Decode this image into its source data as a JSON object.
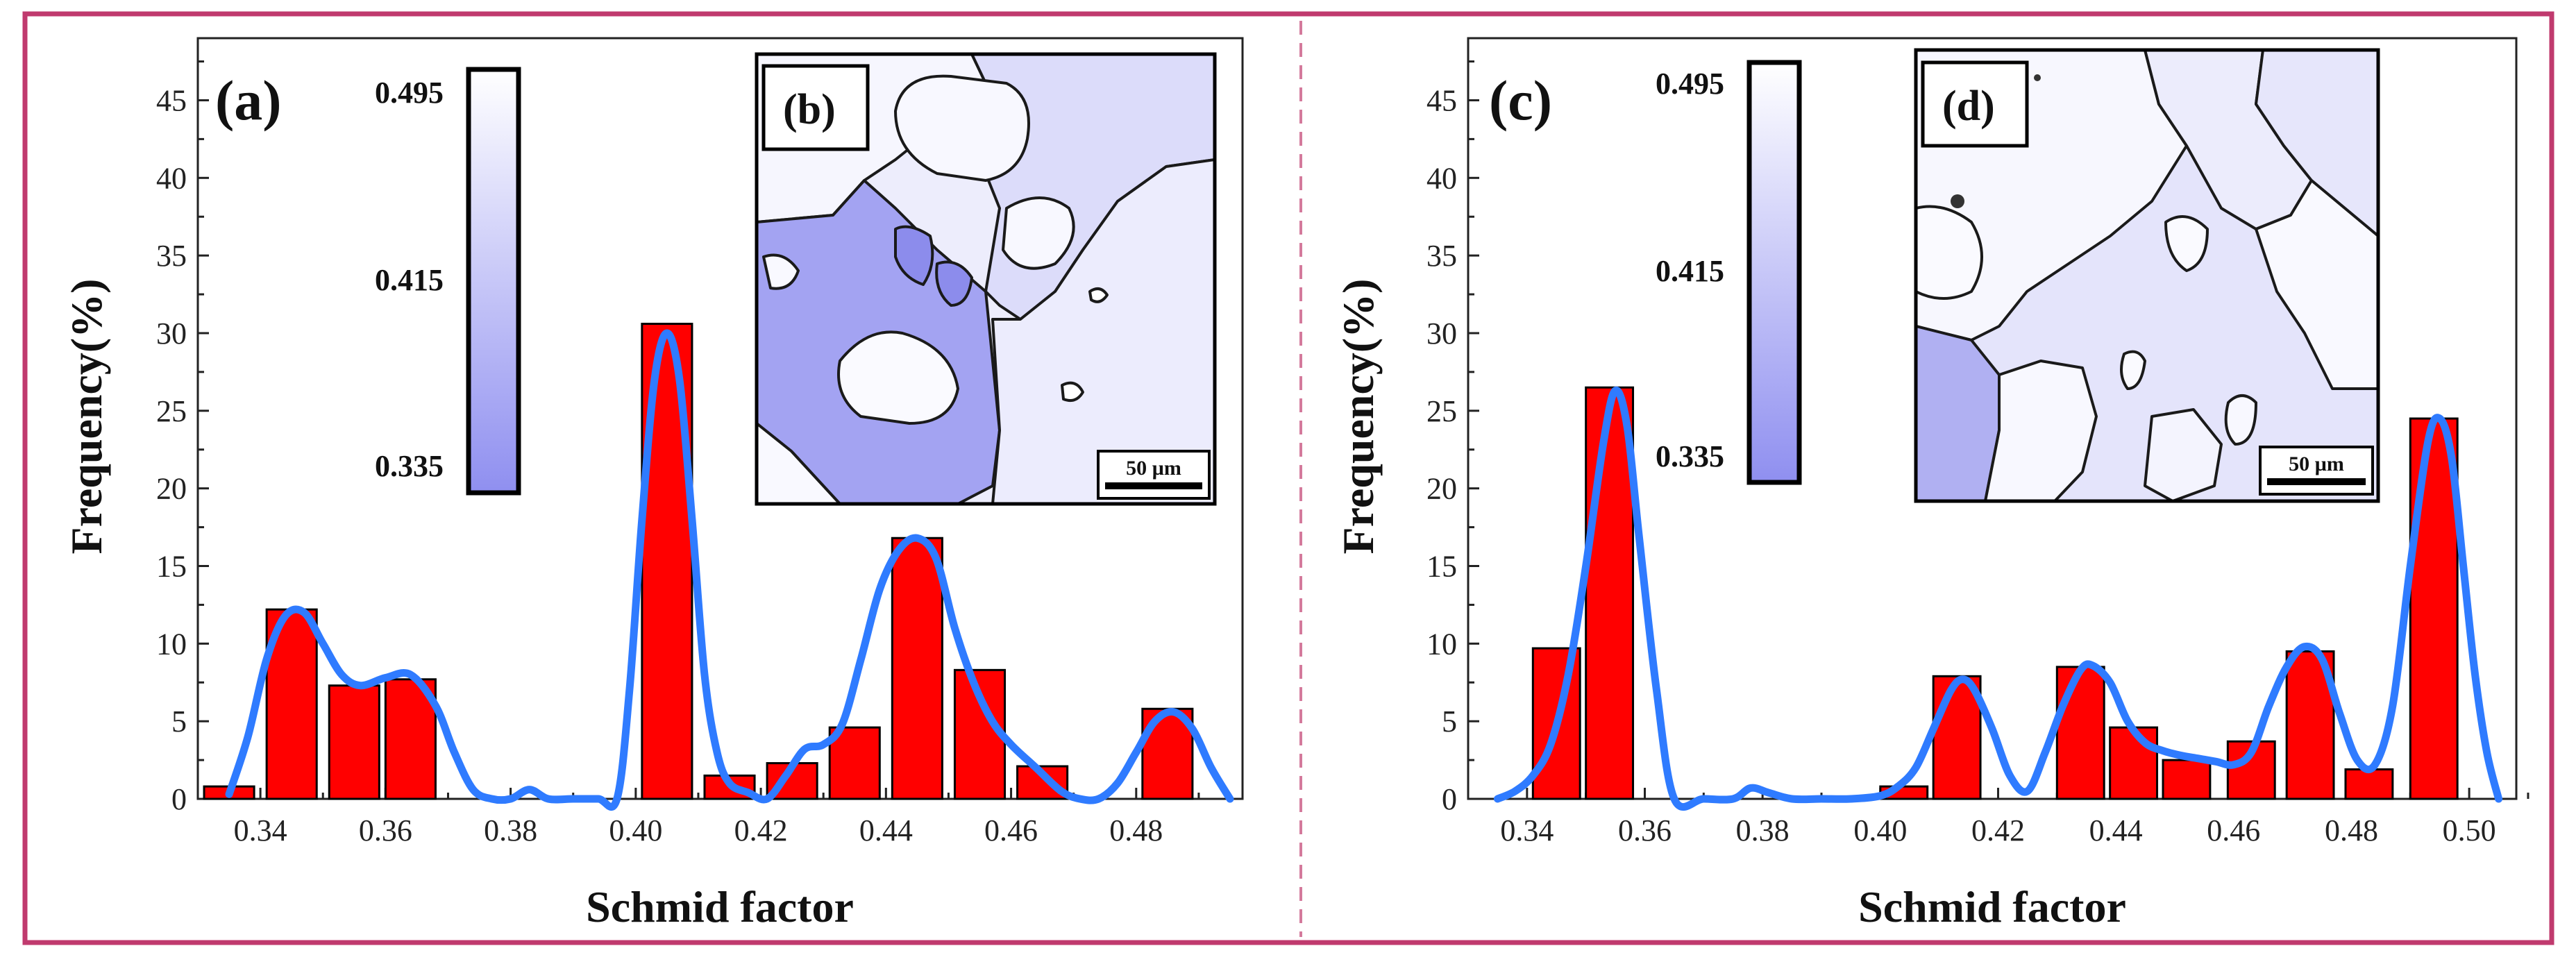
{
  "colors": {
    "frame": "#c03a6e",
    "divider": "#d47a9c",
    "bar_fill": "#ff0000",
    "bar_stroke": "#000000",
    "curve": "#2f7bff",
    "map_high": "#ffffff",
    "map_low": "#8f8ff0"
  },
  "chart_data": [
    {
      "panel": "a",
      "type": "bar",
      "xlabel": "Schmid factor",
      "ylabel": "Frequency(%)",
      "xlim": [
        0.33,
        0.497
      ],
      "ylim": [
        0,
        49
      ],
      "xticks": [
        "0.34",
        "0.36",
        "0.38",
        "0.40",
        "0.42",
        "0.44",
        "0.46",
        "0.48"
      ],
      "yticks": [
        "0",
        "5",
        "10",
        "15",
        "20",
        "25",
        "30",
        "35",
        "40",
        "45"
      ],
      "bin_width": 0.008,
      "x": [
        0.335,
        0.345,
        0.355,
        0.364,
        0.405,
        0.415,
        0.425,
        0.435,
        0.445,
        0.455,
        0.465,
        0.485
      ],
      "values": [
        0.8,
        12.2,
        7.3,
        7.7,
        30.6,
        1.5,
        2.3,
        4.6,
        16.8,
        8.3,
        2.1,
        5.8
      ],
      "curve": {
        "x": [
          0.335,
          0.338,
          0.341,
          0.344,
          0.347,
          0.35,
          0.353,
          0.356,
          0.36,
          0.364,
          0.368,
          0.371,
          0.374,
          0.377,
          0.38,
          0.383,
          0.386,
          0.39,
          0.394,
          0.397,
          0.399,
          0.401,
          0.403,
          0.405,
          0.407,
          0.409,
          0.411,
          0.413,
          0.415,
          0.418,
          0.421,
          0.424,
          0.427,
          0.43,
          0.433,
          0.436,
          0.439,
          0.442,
          0.445,
          0.448,
          0.451,
          0.454,
          0.457,
          0.46,
          0.464,
          0.468,
          0.471,
          0.474,
          0.477,
          0.48,
          0.483,
          0.486,
          0.489,
          0.492,
          0.495
        ],
        "y": [
          0.3,
          4,
          9,
          11.8,
          12,
          10,
          8,
          7.3,
          7.8,
          8,
          6,
          3,
          0.6,
          0,
          0,
          0.6,
          0,
          0,
          0,
          0,
          7,
          18,
          27,
          30,
          27,
          18,
          8,
          3,
          1,
          0.4,
          0,
          1.5,
          3.2,
          3.5,
          4.8,
          9,
          13.5,
          16,
          16.8,
          15.5,
          11,
          7.5,
          5,
          3.5,
          2,
          0.5,
          0,
          0,
          1,
          3,
          5,
          5.6,
          4.5,
          2,
          0
        ]
      },
      "inset_label": "(b)",
      "colorbar": {
        "max": "0.495",
        "mid": "0.415",
        "min": "0.335"
      },
      "scale_bar": "50 µm"
    },
    {
      "panel": "c",
      "type": "bar",
      "xlabel": "Schmid factor",
      "ylabel": "Frequency(%)",
      "xlim": [
        0.33,
        0.508
      ],
      "ylim": [
        0,
        49
      ],
      "xticks": [
        "0.34",
        "0.36",
        "0.38",
        "0.40",
        "0.42",
        "0.44",
        "0.46",
        "0.48",
        "0.50"
      ],
      "yticks": [
        "0",
        "5",
        "10",
        "15",
        "20",
        "25",
        "30",
        "35",
        "40",
        "45"
      ],
      "bin_width": 0.008,
      "x": [
        0.345,
        0.354,
        0.404,
        0.413,
        0.434,
        0.443,
        0.452,
        0.463,
        0.473,
        0.483,
        0.494
      ],
      "values": [
        9.7,
        26.5,
        0.8,
        7.9,
        8.5,
        4.6,
        2.5,
        3.7,
        9.5,
        1.9,
        24.5
      ],
      "curve": {
        "x": [
          0.335,
          0.338,
          0.341,
          0.344,
          0.347,
          0.35,
          0.353,
          0.355,
          0.357,
          0.359,
          0.362,
          0.365,
          0.37,
          0.375,
          0.378,
          0.381,
          0.385,
          0.39,
          0.395,
          0.4,
          0.403,
          0.406,
          0.409,
          0.412,
          0.414,
          0.416,
          0.419,
          0.422,
          0.425,
          0.428,
          0.431,
          0.434,
          0.436,
          0.439,
          0.442,
          0.445,
          0.448,
          0.451,
          0.454,
          0.457,
          0.46,
          0.463,
          0.466,
          0.469,
          0.472,
          0.475,
          0.478,
          0.481,
          0.484,
          0.487,
          0.49,
          0.493,
          0.495,
          0.497,
          0.499,
          0.501,
          0.503,
          0.505
        ],
        "y": [
          0,
          0.5,
          1.5,
          3.5,
          8,
          15,
          23,
          26.3,
          24,
          17,
          7,
          0,
          0,
          0,
          0.7,
          0.4,
          0,
          0,
          0,
          0.2,
          0.8,
          2,
          4.5,
          7,
          7.7,
          7,
          4.5,
          1.5,
          0.5,
          3,
          6,
          8.3,
          8.6,
          7.5,
          5,
          3.6,
          3.1,
          2.8,
          2.6,
          2.4,
          2.2,
          3,
          6,
          8.5,
          9.8,
          9,
          5.5,
          2.5,
          2.2,
          6,
          15,
          23,
          24.5,
          22,
          15,
          8,
          3,
          0
        ]
      },
      "inset_label": "(d)",
      "colorbar": {
        "max": "0.495",
        "mid": "0.415",
        "min": "0.335"
      },
      "scale_bar": "50 µm"
    }
  ],
  "panel_labels": [
    "(a)",
    "(c)"
  ]
}
